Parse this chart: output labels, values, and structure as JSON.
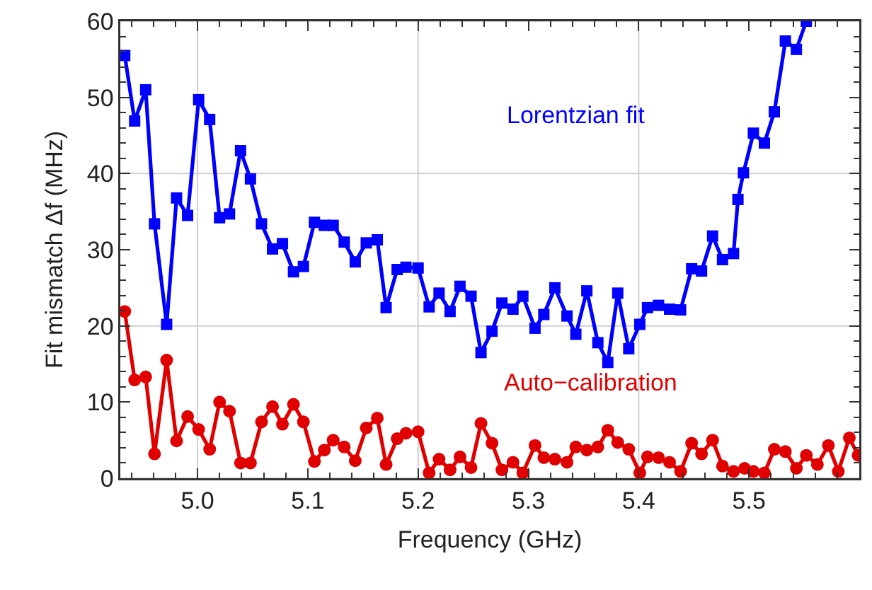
{
  "chart_data": {
    "type": "line",
    "xlabel": "Frequency (GHz)",
    "ylabel": "Fit mismatch Δf (MHz)",
    "xlim": [
      4.93,
      5.6
    ],
    "ylim": [
      0,
      60
    ],
    "xticks": [
      {
        "value": 5.0,
        "label": "5.0"
      },
      5.1,
      5.2,
      5.3,
      5.4,
      5.5
    ],
    "yticks": [
      0,
      10,
      20,
      30,
      40,
      50,
      60
    ],
    "grid": true,
    "legend": false,
    "series": [
      {
        "name": "Lorentzian fit",
        "color": "#0000ff",
        "marker": "square",
        "x": [
          4.934,
          4.943,
          4.953,
          4.961,
          4.972,
          4.981,
          4.991,
          5.001,
          5.011,
          5.02,
          5.029,
          5.039,
          5.048,
          5.058,
          5.068,
          5.077,
          5.087,
          5.096,
          5.106,
          5.115,
          5.123,
          5.133,
          5.143,
          5.153,
          5.163,
          5.171,
          5.181,
          5.189,
          5.2,
          5.21,
          5.219,
          5.229,
          5.238,
          5.248,
          5.257,
          5.267,
          5.276,
          5.286,
          5.295,
          5.306,
          5.314,
          5.324,
          5.335,
          5.343,
          5.353,
          5.363,
          5.372,
          5.381,
          5.391,
          5.401,
          5.408,
          5.418,
          5.428,
          5.438,
          5.448,
          5.457,
          5.467,
          5.476,
          5.486,
          5.49,
          5.495,
          5.504,
          5.514,
          5.523,
          5.533,
          5.543,
          5.552
        ],
        "values": [
          55.5,
          46.9,
          51.0,
          33.4,
          20.2,
          36.8,
          34.5,
          49.7,
          47.1,
          34.2,
          34.7,
          43.0,
          39.3,
          33.4,
          30.1,
          30.8,
          27.1,
          27.8,
          33.6,
          33.2,
          33.2,
          31.0,
          28.4,
          30.9,
          31.3,
          22.4,
          27.4,
          27.7,
          27.6,
          22.5,
          24.3,
          21.9,
          25.2,
          23.9,
          16.5,
          19.3,
          23.0,
          22.2,
          23.9,
          19.7,
          21.5,
          25.0,
          21.3,
          18.9,
          24.6,
          17.8,
          15.2,
          24.3,
          17.0,
          20.2,
          22.4,
          22.7,
          22.2,
          22.1,
          27.5,
          27.2,
          31.8,
          28.7,
          29.5,
          36.6,
          40.1,
          45.3,
          44.0,
          48.1,
          57.4,
          56.3,
          60.0
        ]
      },
      {
        "name": "Auto−calibration",
        "color": "#e00000",
        "marker": "circle",
        "x": [
          4.934,
          4.943,
          4.953,
          4.961,
          4.972,
          4.981,
          4.991,
          5.001,
          5.011,
          5.02,
          5.029,
          5.039,
          5.048,
          5.058,
          5.068,
          5.077,
          5.087,
          5.096,
          5.106,
          5.115,
          5.123,
          5.133,
          5.143,
          5.153,
          5.163,
          5.171,
          5.181,
          5.189,
          5.2,
          5.21,
          5.219,
          5.229,
          5.238,
          5.248,
          5.257,
          5.267,
          5.276,
          5.286,
          5.295,
          5.306,
          5.314,
          5.324,
          5.335,
          5.343,
          5.353,
          5.363,
          5.372,
          5.381,
          5.391,
          5.401,
          5.408,
          5.418,
          5.428,
          5.438,
          5.448,
          5.457,
          5.467,
          5.476,
          5.486,
          5.496,
          5.504,
          5.514,
          5.523,
          5.533,
          5.543,
          5.552,
          5.562,
          5.572,
          5.581,
          5.591,
          5.599
        ],
        "values": [
          21.9,
          12.9,
          13.3,
          3.2,
          15.5,
          4.9,
          8.1,
          6.4,
          3.8,
          10.0,
          8.8,
          2.0,
          2.0,
          7.4,
          9.4,
          7.1,
          9.7,
          7.4,
          2.2,
          3.7,
          5.0,
          4.1,
          2.3,
          6.6,
          7.9,
          1.8,
          5.2,
          5.9,
          6.1,
          0.7,
          2.5,
          1.1,
          2.8,
          1.4,
          7.2,
          4.6,
          1.1,
          2.1,
          0.7,
          4.3,
          2.7,
          2.5,
          2.1,
          4.1,
          3.7,
          4.1,
          6.3,
          4.7,
          3.8,
          0.7,
          2.8,
          2.7,
          2.1,
          0.9,
          4.6,
          3.2,
          5.0,
          1.6,
          0.9,
          1.3,
          0.9,
          0.7,
          3.8,
          3.5,
          1.3,
          3.0,
          1.8,
          4.3,
          0.9,
          5.3,
          3.0
        ]
      }
    ]
  }
}
